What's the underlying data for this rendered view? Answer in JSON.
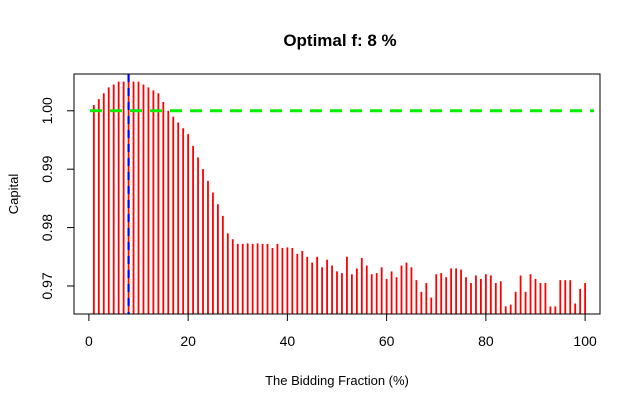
{
  "chart_data": {
    "type": "bar",
    "title": "Optimal f: 8 %",
    "xlabel": "The Bidding Fraction (%)",
    "ylabel": "Capital",
    "xlim": [
      -3,
      103
    ],
    "ylim": [
      0.9652,
      1.0063
    ],
    "xticks": [
      0,
      20,
      40,
      60,
      80,
      100
    ],
    "xtick_labels": [
      "0",
      "20",
      "40",
      "60",
      "80",
      "100"
    ],
    "yticks": [
      0.97,
      0.98,
      0.99,
      1.0
    ],
    "ytick_labels": [
      "0.97",
      "0.98",
      "0.99",
      "1.00"
    ],
    "grid": false,
    "bar_color": "#ff0000",
    "x": [
      1,
      2,
      3,
      4,
      5,
      6,
      7,
      8,
      9,
      10,
      11,
      12,
      13,
      14,
      15,
      16,
      17,
      18,
      19,
      20,
      21,
      22,
      23,
      24,
      25,
      26,
      27,
      28,
      29,
      30,
      31,
      32,
      33,
      34,
      35,
      36,
      37,
      38,
      39,
      40,
      41,
      42,
      43,
      44,
      45,
      46,
      47,
      48,
      49,
      50,
      51,
      52,
      53,
      54,
      55,
      56,
      57,
      58,
      59,
      60,
      61,
      62,
      63,
      64,
      65,
      66,
      67,
      68,
      69,
      70,
      71,
      72,
      73,
      74,
      75,
      76,
      77,
      78,
      79,
      80,
      81,
      82,
      83,
      84,
      85,
      86,
      87,
      88,
      89,
      90,
      91,
      92,
      93,
      94,
      95,
      96,
      97,
      98,
      99,
      100
    ],
    "values": [
      1.001,
      1.002,
      1.003,
      1.004,
      1.0045,
      1.005,
      1.005,
      1.0052,
      1.005,
      1.005,
      1.0045,
      1.004,
      1.0035,
      1.003,
      1.0015,
      1.0,
      0.999,
      0.998,
      0.997,
      0.996,
      0.994,
      0.992,
      0.99,
      0.988,
      0.986,
      0.984,
      0.982,
      0.979,
      0.978,
      0.9772,
      0.9772,
      0.9773,
      0.9772,
      0.9773,
      0.9772,
      0.9772,
      0.9765,
      0.9772,
      0.9765,
      0.9766,
      0.9765,
      0.9755,
      0.976,
      0.975,
      0.974,
      0.975,
      0.9732,
      0.9745,
      0.9735,
      0.9725,
      0.9722,
      0.975,
      0.972,
      0.973,
      0.9748,
      0.9735,
      0.972,
      0.9722,
      0.9732,
      0.9712,
      0.9725,
      0.9715,
      0.9735,
      0.974,
      0.9732,
      0.971,
      0.969,
      0.9705,
      0.968,
      0.972,
      0.9722,
      0.9715,
      0.973,
      0.973,
      0.9728,
      0.9715,
      0.9705,
      0.9718,
      0.9712,
      0.972,
      0.9718,
      0.9705,
      0.9708,
      0.9665,
      0.9668,
      0.969,
      0.9718,
      0.969,
      0.972,
      0.9712,
      0.9705,
      0.9705,
      0.9665,
      0.9665,
      0.971,
      0.971,
      0.971,
      0.967,
      0.9695,
      0.9705
    ],
    "reference_lines": [
      {
        "orientation": "horizontal",
        "value": 1.0,
        "style": "dashed",
        "color": "#00ee00"
      },
      {
        "orientation": "vertical",
        "value": 8,
        "style": "dashed",
        "color": "#0000ff"
      }
    ]
  }
}
